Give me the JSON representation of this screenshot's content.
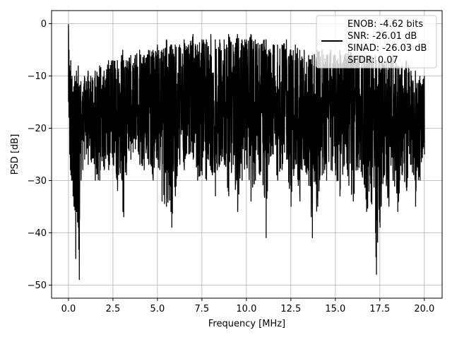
{
  "chart_data": {
    "type": "line",
    "title": "",
    "xlabel": "Frequency [MHz]",
    "ylabel": "PSD [dB]",
    "xlim": [
      -0.95,
      21.0
    ],
    "ylim": [
      -52.5,
      2.5
    ],
    "x_ticks": [
      0.0,
      2.5,
      5.0,
      7.5,
      10.0,
      12.5,
      15.0,
      17.5,
      20.0
    ],
    "x_tick_labels": [
      "0.0",
      "2.5",
      "5.0",
      "7.5",
      "10.0",
      "12.5",
      "15.0",
      "17.5",
      "20.0"
    ],
    "y_ticks": [
      0,
      -10,
      -20,
      -30,
      -40,
      -50
    ],
    "y_tick_labels": [
      "0",
      "−10",
      "−20",
      "−30",
      "−40",
      "−50"
    ],
    "grid": true,
    "legend_position": "top-right",
    "legend_lines": [
      "ENOB: -4.62 bits",
      "SNR: -26.01 dB",
      "SINAD: -26.03 dB",
      "SFDR: 0.07"
    ],
    "series": [
      {
        "color": "#000000",
        "x": [
          0.0,
          0.03,
          0.06,
          0.1,
          0.13,
          0.17,
          0.2,
          0.25,
          0.3,
          0.35,
          0.4,
          0.45,
          0.5,
          0.55,
          0.6,
          0.7,
          0.8,
          0.9,
          1.0,
          1.1,
          1.25,
          1.5,
          1.75,
          2.0,
          2.25,
          2.5,
          2.75,
          3.0,
          3.05,
          3.1,
          3.25,
          3.5,
          3.75,
          4.0,
          4.25,
          4.5,
          4.75,
          5.0,
          5.25,
          5.5,
          5.75,
          5.8,
          6.0,
          6.25,
          6.5,
          6.75,
          7.0,
          7.25,
          7.5,
          7.75,
          8.0,
          8.25,
          8.5,
          8.75,
          9.0,
          9.25,
          9.5,
          9.75,
          10.0,
          10.25,
          10.5,
          10.75,
          11.0,
          11.1,
          11.25,
          11.5,
          11.75,
          12.0,
          12.25,
          12.5,
          12.75,
          13.0,
          13.25,
          13.5,
          13.7,
          14.0,
          14.25,
          14.5,
          14.75,
          15.0,
          15.25,
          15.5,
          15.75,
          16.0,
          16.25,
          16.5,
          16.75,
          17.0,
          17.25,
          17.3,
          17.5,
          17.75,
          18.0,
          18.25,
          18.5,
          18.75,
          19.0,
          19.25,
          19.5,
          19.75,
          20.0
        ],
        "hi": [
          -0.1,
          -5,
          -8,
          -9,
          -7,
          -11,
          -10,
          -13,
          -12,
          -10,
          -11,
          -9,
          -12,
          -8,
          -12,
          -11,
          -13,
          -10,
          -11,
          -9,
          -10,
          -9,
          -8,
          -9,
          -7,
          -7,
          -7,
          -6,
          -5,
          -7,
          -7,
          -6,
          -6,
          -5,
          -6,
          -5,
          -5,
          -4,
          -5,
          -3,
          -4,
          -4,
          -4,
          -4,
          -3,
          -4,
          -2,
          -4,
          -3,
          -3,
          -2,
          -3,
          -3,
          -3,
          -2,
          -4,
          -2,
          -3,
          -3,
          -2,
          -3,
          -4,
          -3,
          -3,
          -5,
          -4,
          -4,
          -4,
          -3,
          -5,
          -4,
          -5,
          -5,
          -6,
          -6,
          -5,
          -5,
          -6,
          -5,
          -6,
          -5,
          -6,
          -4,
          -6,
          -6,
          -6,
          -6,
          -6,
          -6,
          -7,
          -7,
          -7,
          -7,
          -6,
          -8,
          -8,
          -7,
          -9,
          -9,
          -10,
          -10
        ],
        "lo": [
          -15,
          -18,
          -25,
          -28,
          -29,
          -30,
          -30,
          -33,
          -35,
          -34,
          -45,
          -36,
          -38,
          -39,
          -49,
          -30,
          -28,
          -26,
          -25,
          -27,
          -26,
          -30,
          -30,
          -28,
          -28,
          -27,
          -32,
          -30,
          -36,
          -37,
          -29,
          -26,
          -24,
          -27,
          -28,
          -27,
          -30,
          -26,
          -34,
          -35,
          -36,
          -39,
          -33,
          -27,
          -28,
          -25,
          -26,
          -30,
          -29,
          -30,
          -28,
          -33,
          -27,
          -27,
          -33,
          -27,
          -36,
          -30,
          -27,
          -34,
          -30,
          -29,
          -33,
          -41,
          -27,
          -25,
          -30,
          -28,
          -26,
          -35,
          -26,
          -34,
          -27,
          -31,
          -41,
          -35,
          -29,
          -30,
          -28,
          -29,
          -33,
          -27,
          -31,
          -34,
          -28,
          -29,
          -36,
          -34,
          -40,
          -48,
          -39,
          -29,
          -35,
          -30,
          -36,
          -29,
          -32,
          -27,
          -35,
          -30,
          -25
        ]
      }
    ]
  }
}
